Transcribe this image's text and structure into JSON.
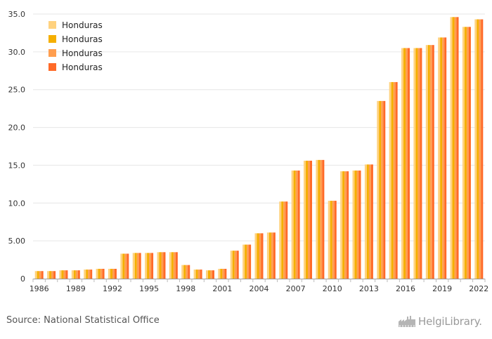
{
  "chart_data": {
    "type": "bar",
    "title": "",
    "xlabel": "",
    "ylabel": "",
    "ylim": [
      0,
      35
    ],
    "y_ticks": [
      "0",
      "5.00",
      "10.0",
      "15.0",
      "20.0",
      "25.0",
      "30.0",
      "35.0"
    ],
    "y_tick_values": [
      0,
      5,
      10,
      15,
      20,
      25,
      30,
      35
    ],
    "x_tick_labels": [
      "1986",
      "1989",
      "1992",
      "1995",
      "1998",
      "2001",
      "2004",
      "2007",
      "2010",
      "2013",
      "2016",
      "2019",
      "2022"
    ],
    "categories": [
      "1986",
      "1987",
      "1988",
      "1989",
      "1990",
      "1991",
      "1992",
      "1993",
      "1994",
      "1995",
      "1996",
      "1997",
      "1998",
      "1999",
      "2000",
      "2001",
      "2002",
      "2003",
      "2004",
      "2005",
      "2006",
      "2007",
      "2008",
      "2009",
      "2010",
      "2011",
      "2012",
      "2013",
      "2014",
      "2015",
      "2016",
      "2017",
      "2018",
      "2019",
      "2020",
      "2021",
      "2022"
    ],
    "grid": true,
    "legend_position": "top-left",
    "series": [
      {
        "name": "Honduras",
        "color": "#FFD27F",
        "values": [
          1.0,
          1.0,
          1.1,
          1.1,
          1.2,
          1.3,
          1.3,
          3.3,
          3.4,
          3.4,
          3.5,
          3.5,
          1.8,
          1.2,
          1.1,
          1.3,
          3.7,
          4.5,
          6.0,
          6.1,
          10.2,
          14.3,
          15.6,
          15.7,
          10.3,
          14.2,
          14.3,
          15.1,
          23.5,
          26.0,
          30.5,
          30.5,
          30.9,
          31.9,
          34.6,
          33.3,
          34.3
        ]
      },
      {
        "name": "Honduras",
        "color": "#F5AF00",
        "values": [
          1.0,
          1.0,
          1.1,
          1.1,
          1.2,
          1.3,
          1.3,
          3.3,
          3.4,
          3.4,
          3.5,
          3.5,
          1.8,
          1.2,
          1.1,
          1.3,
          3.7,
          4.5,
          6.0,
          6.1,
          10.2,
          14.3,
          15.6,
          15.7,
          10.3,
          14.2,
          14.3,
          15.1,
          23.5,
          26.0,
          30.5,
          30.5,
          30.9,
          31.9,
          34.6,
          33.3,
          34.3
        ]
      },
      {
        "name": "Honduras",
        "color": "#FF9E4F",
        "values": [
          1.0,
          1.0,
          1.1,
          1.1,
          1.2,
          1.3,
          1.3,
          3.3,
          3.4,
          3.4,
          3.5,
          3.5,
          1.8,
          1.2,
          1.1,
          1.3,
          3.7,
          4.5,
          6.0,
          6.1,
          10.2,
          14.3,
          15.6,
          15.7,
          10.3,
          14.2,
          14.3,
          15.1,
          23.5,
          26.0,
          30.5,
          30.5,
          30.9,
          31.9,
          34.6,
          33.3,
          34.3
        ]
      },
      {
        "name": "Honduras",
        "color": "#FF6A28",
        "values": [
          1.0,
          1.0,
          1.1,
          1.1,
          1.2,
          1.3,
          1.3,
          3.3,
          3.4,
          3.4,
          3.5,
          3.5,
          1.8,
          1.2,
          1.1,
          1.3,
          3.7,
          4.5,
          6.0,
          6.1,
          10.2,
          14.3,
          15.6,
          15.7,
          10.3,
          14.2,
          14.3,
          15.1,
          23.5,
          26.0,
          30.5,
          30.5,
          30.9,
          31.9,
          34.6,
          33.3,
          34.3
        ]
      }
    ]
  },
  "footer": {
    "source": "Source: National Statistical Office",
    "logo_text": "HelgiLibrary.",
    "logo_icon": "factory-icon"
  }
}
